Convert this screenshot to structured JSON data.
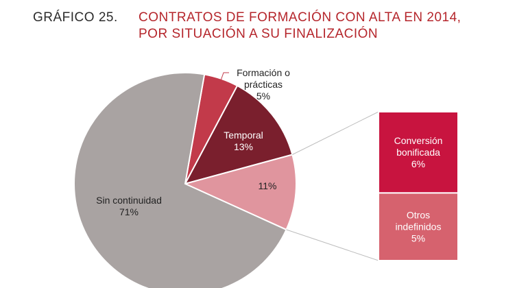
{
  "title": {
    "prefix": "GRÁFICO 25.",
    "line1": "CONTRATOS DE FORMACIÓN CON ALTA EN 2014,",
    "line2": "POR SITUACIÓN A SU FINALIZACIÓN"
  },
  "chart_data": {
    "type": "pie",
    "title": "CONTRATOS DE FORMACIÓN CON ALTA EN 2014, POR SITUACIÓN A SU FINALIZACIÓN",
    "unit": "%",
    "slices": [
      {
        "label_lines": [
          "Formación o",
          "prácticas"
        ],
        "value": 5,
        "value_label": "5%",
        "color": "#c23a4a"
      },
      {
        "label_lines": [
          "Temporal"
        ],
        "value": 13,
        "value_label": "13%",
        "color": "#7a1f2d"
      },
      {
        "label_lines": [],
        "value": 11,
        "value_label": "11%",
        "color": "#e0959e"
      },
      {
        "label_lines": [
          "Sin continuidad"
        ],
        "value": 71,
        "value_label": "71%",
        "color": "#a9a3a2"
      }
    ],
    "breakdown": {
      "of_slice": 2,
      "items": [
        {
          "label_lines": [
            "Conversión",
            "bonificada"
          ],
          "value": 6,
          "value_label": "6%",
          "color": "#c8143f"
        },
        {
          "label_lines": [
            "Otros",
            "indefinidos"
          ],
          "value": 5,
          "value_label": "5%",
          "color": "#d6626e"
        }
      ]
    }
  }
}
